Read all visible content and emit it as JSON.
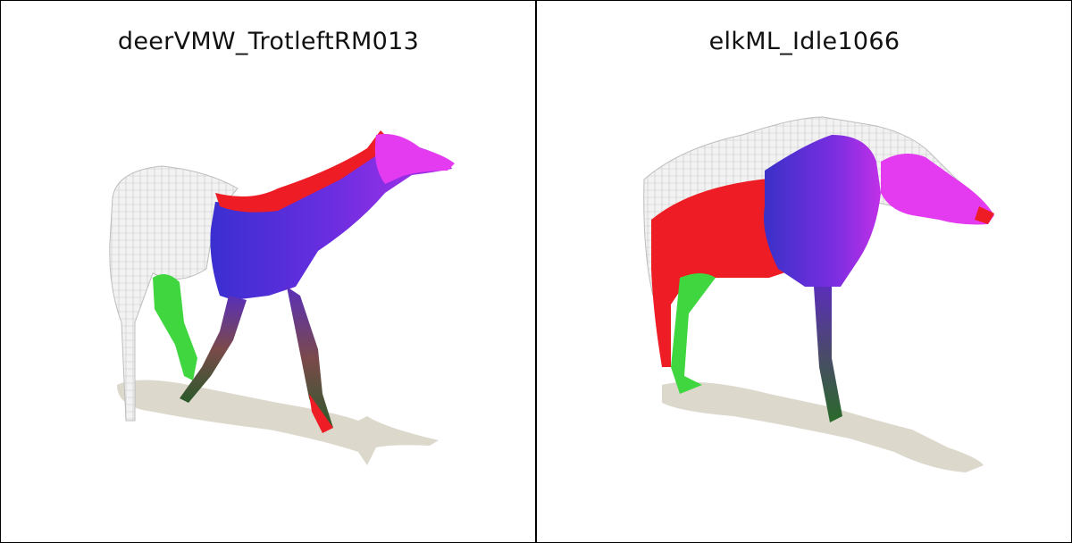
{
  "panels": [
    {
      "title": "deerVMW_TrotleftRM013"
    },
    {
      "title": "elkML_Idle1066"
    }
  ]
}
